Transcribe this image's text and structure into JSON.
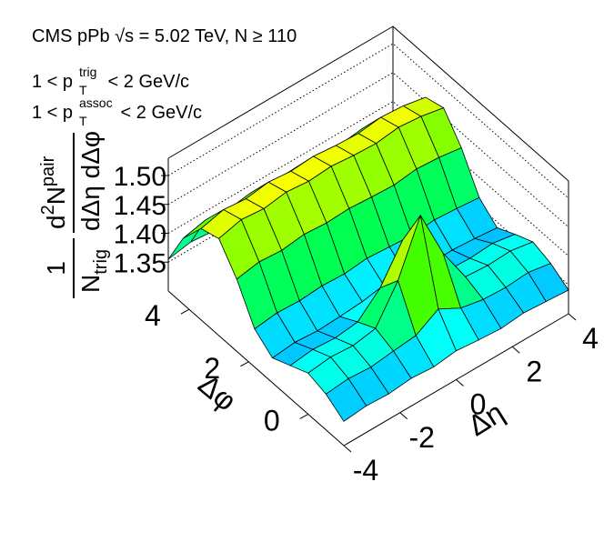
{
  "chart_data": {
    "type": "surface",
    "title": "CMS pPb √s = 5.02 TeV, N ≥ 110",
    "annotations": [
      {
        "pre": "1 < p",
        "sub": "T",
        "sup": "trig",
        "post": " < 2 GeV/c"
      },
      {
        "pre": "1 < p",
        "sub": "T",
        "sup": "assoc",
        "post": " < 2 GeV/c"
      }
    ],
    "z_label": {
      "left_num": "1",
      "left_den": "N",
      "left_den_sub": "trig",
      "right_num_d": "d",
      "right_num_sup": "2",
      "right_num_N": "N",
      "right_num_N_sup": "pair",
      "right_den": "dΔη dΔφ"
    },
    "x_label": "Δη",
    "y_label": "Δφ",
    "x": [
      -4,
      -3.2,
      -2.4,
      -1.6,
      -0.8,
      0,
      0.8,
      1.6,
      2.4,
      3.2,
      4
    ],
    "y": [
      -1.2,
      -0.6,
      0,
      0.6,
      1.2,
      1.8,
      2.4,
      3.0,
      3.6,
      4.2,
      4.7
    ],
    "z": [
      [
        1.342,
        1.346,
        1.344,
        1.348,
        1.345,
        1.35,
        1.346,
        1.343,
        1.347,
        1.344,
        1.341
      ],
      [
        1.362,
        1.366,
        1.363,
        1.368,
        1.372,
        1.395,
        1.374,
        1.366,
        1.364,
        1.367,
        1.36
      ],
      [
        1.371,
        1.376,
        1.373,
        1.38,
        1.44,
        1.53,
        1.442,
        1.378,
        1.375,
        1.377,
        1.37
      ],
      [
        1.357,
        1.362,
        1.359,
        1.364,
        1.4,
        1.46,
        1.402,
        1.362,
        1.36,
        1.363,
        1.356
      ],
      [
        1.343,
        1.347,
        1.344,
        1.346,
        1.349,
        1.352,
        1.348,
        1.345,
        1.347,
        1.344,
        1.34
      ],
      [
        1.366,
        1.371,
        1.369,
        1.372,
        1.37,
        1.374,
        1.371,
        1.368,
        1.372,
        1.369,
        1.365
      ],
      [
        1.425,
        1.432,
        1.429,
        1.434,
        1.431,
        1.433,
        1.43,
        1.428,
        1.433,
        1.43,
        1.424
      ],
      [
        1.468,
        1.478,
        1.474,
        1.48,
        1.476,
        1.479,
        1.475,
        1.473,
        1.478,
        1.474,
        1.466
      ],
      [
        1.458,
        1.468,
        1.464,
        1.47,
        1.466,
        1.469,
        1.465,
        1.463,
        1.468,
        1.465,
        1.457
      ],
      [
        1.414,
        1.423,
        1.418,
        1.424,
        1.42,
        1.422,
        1.419,
        1.417,
        1.422,
        1.419,
        1.413
      ],
      [
        1.355,
        1.362,
        1.358,
        1.363,
        1.36,
        1.362,
        1.359,
        1.357,
        1.361,
        1.358,
        1.354
      ]
    ],
    "xlim": [
      -4,
      4
    ],
    "xticks": [
      -4,
      -2,
      0,
      2,
      4
    ],
    "ylim": [
      -1.2,
      4.7
    ],
    "yticks": [
      0,
      2,
      4
    ],
    "zlim": [
      1.3,
      1.53
    ],
    "zticks": [
      1.35,
      {
        "value": 1.4,
        "label": "1.40"
      },
      1.45,
      {
        "value": 1.5,
        "label": "1.50"
      }
    ]
  }
}
